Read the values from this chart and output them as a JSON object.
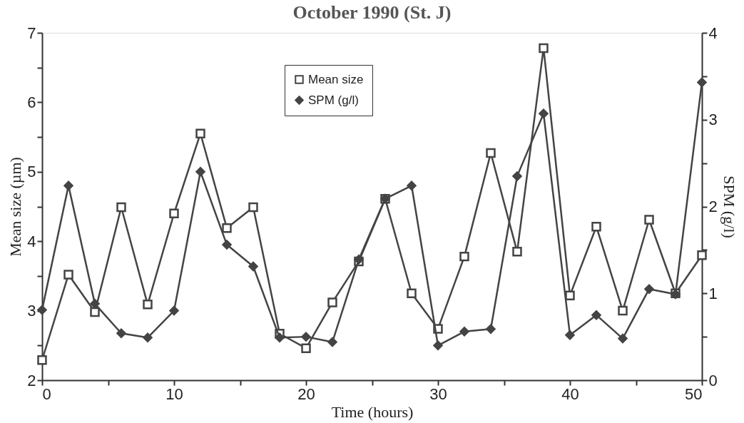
{
  "chart_data": {
    "type": "line",
    "title": "October 1990 (St. J)",
    "xlabel": "Time (hours)",
    "ylabel": "Mean size (µm)",
    "y2label": "SPM (g/l)",
    "x": [
      0,
      2,
      4,
      6,
      8,
      10,
      12,
      14,
      16,
      18,
      20,
      22,
      24,
      26,
      28,
      30,
      32,
      34,
      36,
      38,
      40,
      42,
      44,
      46,
      48,
      50
    ],
    "series": [
      {
        "name": "Mean size",
        "color": "#444444",
        "marker": "square",
        "values": [
          2.29,
          3.52,
          2.98,
          4.49,
          3.09,
          4.4,
          5.55,
          4.19,
          4.49,
          2.67,
          2.46,
          3.12,
          3.71,
          4.61,
          3.25,
          2.74,
          3.78,
          5.27,
          3.85,
          6.78,
          3.22,
          4.21,
          3.0,
          4.31,
          3.25,
          3.8
        ]
      },
      {
        "name": "SPM (g/l)",
        "color": "#444444",
        "marker": "diamond",
        "axis": "y2",
        "values": [
          0.81,
          2.24,
          0.88,
          0.54,
          0.49,
          0.8,
          2.4,
          1.56,
          1.31,
          0.49,
          0.5,
          0.44,
          1.39,
          2.09,
          2.24,
          0.4,
          0.56,
          0.59,
          2.35,
          3.07,
          0.52,
          0.75,
          0.48,
          1.05,
          0.99,
          3.43
        ]
      }
    ],
    "xlim": [
      0,
      50
    ],
    "xticks": [
      0,
      {
        "value": 5,
        "label": null
      },
      10,
      {
        "value": 15,
        "label": null
      },
      20,
      {
        "value": 25,
        "label": null
      },
      30,
      {
        "value": 35,
        "label": null
      },
      40,
      {
        "value": 45,
        "label": null
      },
      50
    ],
    "ylim": [
      2,
      7
    ],
    "yticks": [
      2,
      {
        "value": 2.5,
        "label": null
      },
      3,
      {
        "value": 3.5,
        "label": null
      },
      4,
      {
        "value": 4.5,
        "label": null
      },
      5,
      {
        "value": 5.5,
        "label": null
      },
      6,
      {
        "value": 6.5,
        "label": null
      },
      7
    ],
    "y2lim": [
      0,
      4
    ],
    "y2ticks": [
      0,
      {
        "value": 0.5,
        "label": null
      },
      1,
      {
        "value": 1.5,
        "label": null
      },
      2,
      {
        "value": 2.5,
        "label": null
      },
      3,
      {
        "value": 3.5,
        "label": null
      },
      4
    ],
    "grid": false,
    "legend": "top",
    "line_style": "solid"
  }
}
